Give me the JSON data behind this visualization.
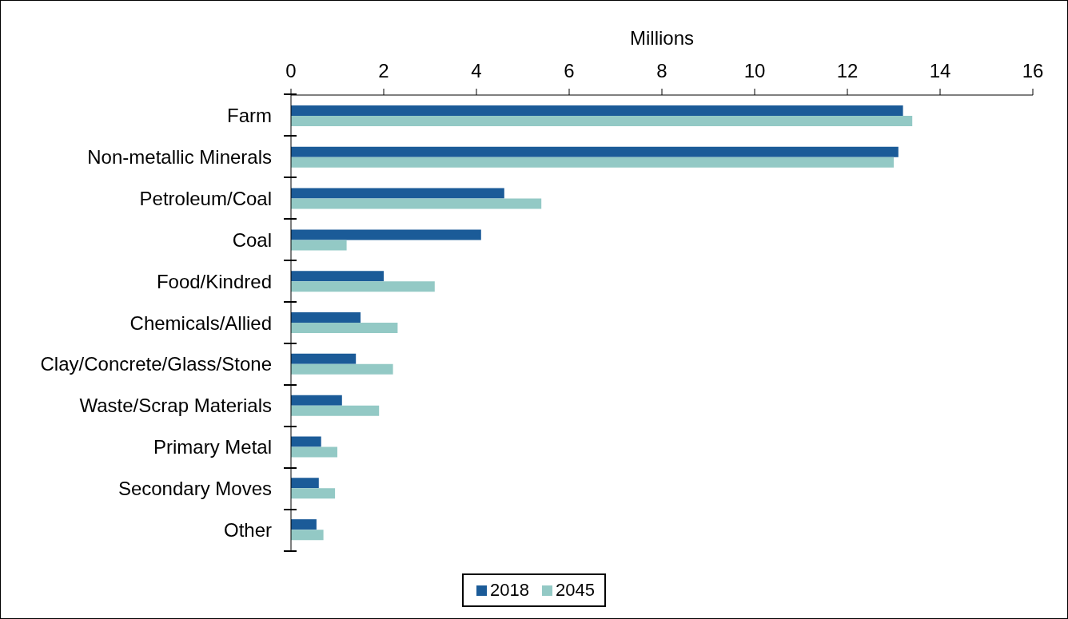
{
  "chart_data": {
    "type": "bar",
    "orientation": "horizontal",
    "xlabel": "Millions",
    "categories": [
      "Farm",
      "Non-metallic Minerals",
      "Petroleum/Coal",
      "Coal",
      "Food/Kindred",
      "Chemicals/Allied",
      "Clay/Concrete/Glass/Stone",
      "Waste/Scrap Materials",
      "Primary Metal",
      "Secondary Moves",
      "Other"
    ],
    "series": [
      {
        "name": "2018",
        "color": "#1b5b98",
        "values": [
          13.2,
          13.1,
          4.6,
          4.1,
          2.0,
          1.5,
          1.4,
          1.1,
          0.65,
          0.6,
          0.55
        ]
      },
      {
        "name": "2045",
        "color": "#93c9c5",
        "values": [
          13.4,
          13.0,
          5.4,
          1.2,
          3.1,
          2.3,
          2.2,
          1.9,
          1.0,
          0.95,
          0.7
        ]
      }
    ],
    "xlim": [
      0,
      16
    ],
    "xticks": [
      0,
      2,
      4,
      6,
      8,
      10,
      12,
      14,
      16
    ],
    "legend": "bottom"
  }
}
